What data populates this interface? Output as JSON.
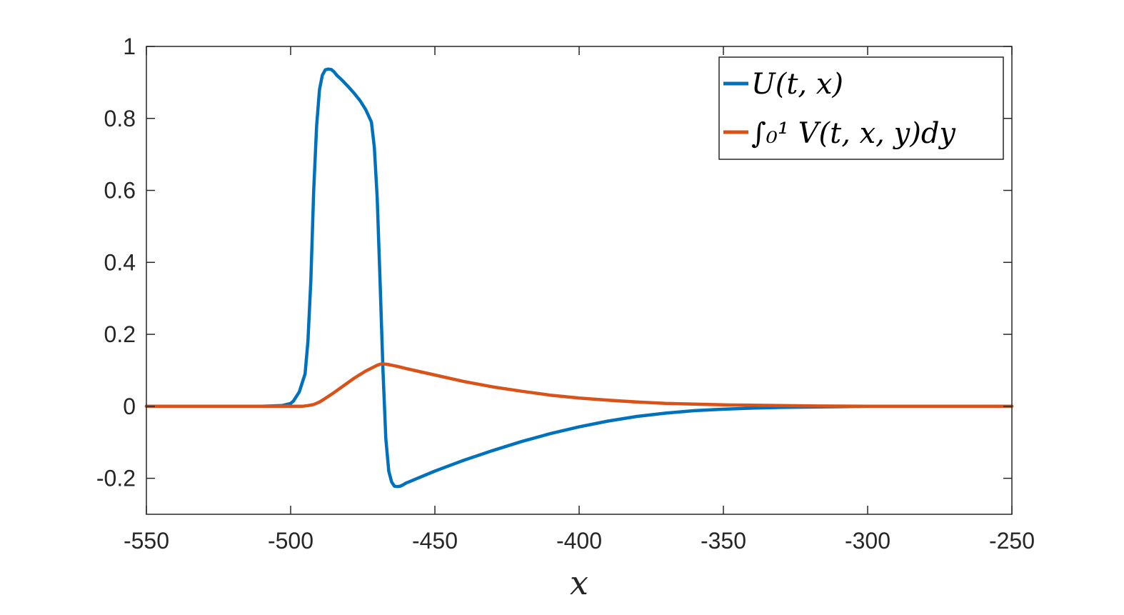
{
  "chart_data": {
    "type": "line",
    "title": "",
    "xlabel": "x",
    "ylabel": "",
    "xlim": [
      -550,
      -250
    ],
    "ylim": [
      -0.3,
      1
    ],
    "xticks": [
      -550,
      -500,
      -450,
      -400,
      -350,
      -300,
      -250
    ],
    "xtick_labels": [
      "-550",
      "-500",
      "-450",
      "-400",
      "-350",
      "-300",
      "-250"
    ],
    "yticks": [
      -0.2,
      0,
      0.2,
      0.4,
      0.6,
      0.8,
      1
    ],
    "ytick_labels": [
      "-0.2",
      "0",
      "0.2",
      "0.4",
      "0.6",
      "0.8",
      "1"
    ],
    "grid": false,
    "legend_position": "top-right",
    "series": [
      {
        "name": "U(t, x)",
        "color": "#0072BD",
        "x": [
          -550,
          -510,
          -503,
          -500,
          -499,
          -497,
          -495,
          -494,
          -493,
          -492,
          -491,
          -490,
          -489,
          -488,
          -487,
          -486,
          -485,
          -484,
          -482,
          -480,
          -478,
          -476,
          -474,
          -472,
          -471,
          -470,
          -469,
          -468,
          -467,
          -466,
          -465,
          -464,
          -463,
          -462,
          -461,
          -460,
          -459,
          -456,
          -450,
          -440,
          -430,
          -420,
          -410,
          -400,
          -390,
          -380,
          -370,
          -360,
          -350,
          -340,
          -330,
          -320,
          -310,
          -300,
          -280,
          -250
        ],
        "y": [
          0,
          0,
          0.002,
          0.008,
          0.015,
          0.04,
          0.09,
          0.18,
          0.35,
          0.6,
          0.78,
          0.88,
          0.92,
          0.935,
          0.937,
          0.936,
          0.93,
          0.92,
          0.905,
          0.888,
          0.87,
          0.85,
          0.825,
          0.79,
          0.72,
          0.58,
          0.35,
          0.1,
          -0.09,
          -0.18,
          -0.21,
          -0.222,
          -0.223,
          -0.222,
          -0.218,
          -0.213,
          -0.21,
          -0.2,
          -0.18,
          -0.15,
          -0.123,
          -0.098,
          -0.076,
          -0.057,
          -0.041,
          -0.028,
          -0.019,
          -0.012,
          -0.008,
          -0.005,
          -0.003,
          -0.002,
          -0.001,
          0,
          0,
          0
        ]
      },
      {
        "name": "∫₀¹ V(t, x, y)dy",
        "color": "#D95319",
        "x": [
          -550,
          -500,
          -496,
          -494,
          -492,
          -490,
          -488,
          -485,
          -482,
          -478,
          -474,
          -470,
          -469,
          -468,
          -466,
          -463,
          -460,
          -455,
          -450,
          -440,
          -430,
          -420,
          -410,
          -400,
          -390,
          -380,
          -370,
          -360,
          -350,
          -340,
          -330,
          -320,
          -300,
          -250
        ],
        "y": [
          0,
          0,
          0,
          0.002,
          0.005,
          0.012,
          0.022,
          0.038,
          0.055,
          0.078,
          0.098,
          0.114,
          0.117,
          0.118,
          0.116,
          0.111,
          0.105,
          0.096,
          0.087,
          0.069,
          0.054,
          0.042,
          0.031,
          0.023,
          0.017,
          0.012,
          0.008,
          0.006,
          0.004,
          0.003,
          0.002,
          0.001,
          0,
          0
        ]
      }
    ]
  }
}
